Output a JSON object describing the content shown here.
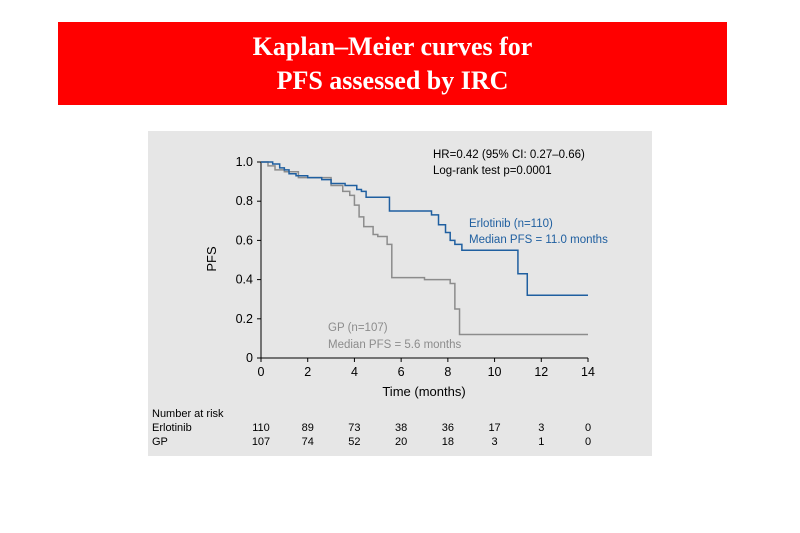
{
  "slide": {
    "title_line1": "Kaplan–Meier curves for",
    "title_line2": "PFS assessed by IRC"
  },
  "colors": {
    "banner": "#ff0000",
    "panel": "#e6e6e6",
    "erlotinib": "#1f5fa0",
    "gp": "#8c8c8c"
  },
  "chart_data": {
    "type": "line",
    "subtype": "kaplan-meier step curve",
    "xlabel": "Time (months)",
    "ylabel": "PFS",
    "xlim": [
      0,
      14
    ],
    "ylim": [
      0,
      1.0
    ],
    "x_ticks": [
      "0",
      "2",
      "4",
      "6",
      "8",
      "10",
      "12",
      "14"
    ],
    "y_ticks": [
      "0",
      "0.2",
      "0.4",
      "0.6",
      "0.8",
      "1.0"
    ],
    "grid": false,
    "stats_line1": "HR=0.42 (95% CI: 0.27–0.66)",
    "stats_line2": "Log-rank test p=0.0001",
    "series": [
      {
        "name": "Erlotinib (n=110)",
        "label_line2": "Median PFS = 11.0 months",
        "color": "#1f5fa0",
        "x": [
          0,
          0.5,
          0.8,
          1.0,
          1.2,
          1.5,
          2.0,
          2.6,
          3.0,
          3.6,
          4.1,
          4.3,
          4.5,
          5.5,
          6.5,
          7.3,
          7.6,
          7.9,
          8.1,
          8.3,
          8.6,
          11.0,
          11.4,
          14.0
        ],
        "y": [
          1.0,
          0.99,
          0.97,
          0.96,
          0.94,
          0.93,
          0.92,
          0.91,
          0.89,
          0.88,
          0.86,
          0.85,
          0.82,
          0.75,
          0.75,
          0.73,
          0.68,
          0.64,
          0.6,
          0.58,
          0.55,
          0.43,
          0.32,
          0.32
        ]
      },
      {
        "name": "GP (n=107)",
        "label_line2": "Median PFS = 5.6 months",
        "color": "#8c8c8c",
        "x": [
          0,
          0.3,
          0.6,
          1.0,
          1.6,
          3.0,
          3.5,
          3.8,
          4.0,
          4.2,
          4.4,
          4.8,
          5.0,
          5.4,
          5.6,
          6.5,
          7.0,
          8.1,
          8.3,
          8.5,
          14.0
        ],
        "y": [
          1.0,
          0.98,
          0.96,
          0.95,
          0.92,
          0.88,
          0.85,
          0.83,
          0.78,
          0.72,
          0.67,
          0.63,
          0.62,
          0.58,
          0.41,
          0.41,
          0.4,
          0.38,
          0.25,
          0.12,
          0.12
        ]
      }
    ]
  },
  "risk_table": {
    "header": "Number at risk",
    "rows": [
      {
        "label": "Erlotinib",
        "values": [
          "110",
          "89",
          "73",
          "38",
          "36",
          "17",
          "3",
          "0"
        ]
      },
      {
        "label": "GP",
        "values": [
          "107",
          "74",
          "52",
          "20",
          "18",
          "3",
          "1",
          "0"
        ]
      }
    ]
  }
}
